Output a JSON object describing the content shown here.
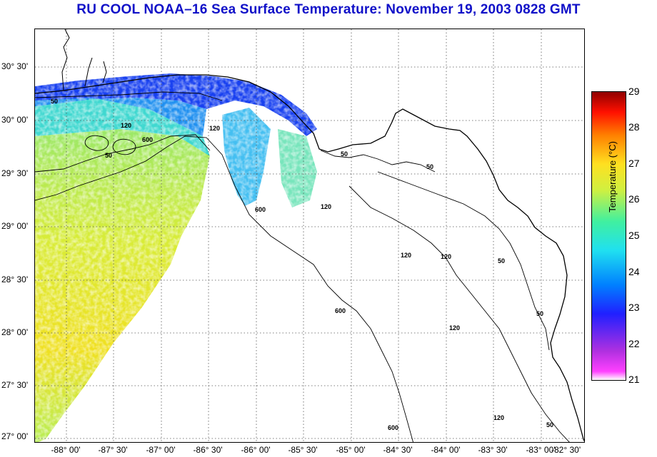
{
  "title": "RU COOL  NOAA–16  Sea Surface Temperature:  November 19, 2003 0828 GMT",
  "map": {
    "latitude_labels": [
      "30° 30'",
      "30° 00'",
      "29° 30'",
      "29° 00'",
      "28° 30'",
      "28° 00'",
      "27° 30'",
      "27° 00'"
    ],
    "longitude_labels": [
      "-88° 00'",
      "-87° 30'",
      "-87° 00'",
      "-86° 30'",
      "-86° 00'",
      "-85° 30'",
      "-85° 00'",
      "-84° 30'",
      "-84° 00'",
      "-83° 30'",
      "-83° 00'",
      "-82° 30'"
    ],
    "contour_labels": [
      "50",
      "120",
      "600",
      "50",
      "120",
      "50",
      "120",
      "600",
      "50",
      "120",
      "600",
      "120",
      "50",
      "50",
      "120",
      "600",
      "120",
      "50"
    ]
  },
  "colorbar": {
    "ticks": [
      "29",
      "28",
      "27",
      "26",
      "25",
      "24",
      "23",
      "22",
      "21"
    ],
    "axis_label": "Temperature (°C)",
    "range": [
      21,
      29
    ]
  },
  "colors": {
    "title": "#1010c8",
    "warm": "#e8e020",
    "cool": "#1830f0"
  }
}
